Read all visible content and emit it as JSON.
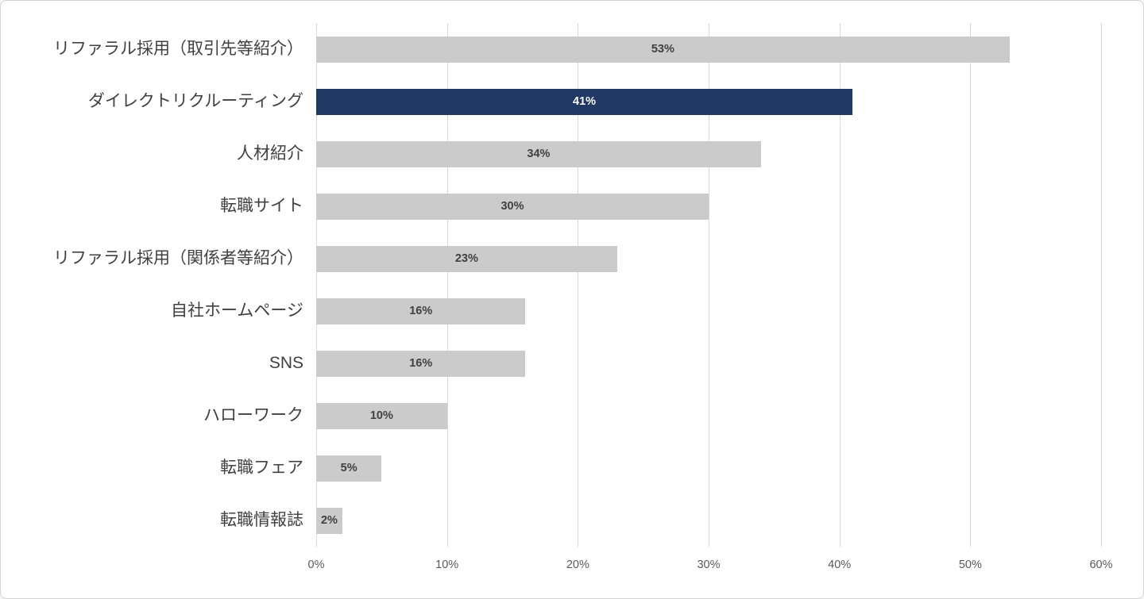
{
  "chart_data": {
    "type": "bar",
    "orientation": "horizontal",
    "title": "",
    "xlabel": "",
    "ylabel": "",
    "categories": [
      "リファラル採用（取引先等紹介）",
      "ダイレクトリクルーティング",
      "人材紹介",
      "転職サイト",
      "リファラル採用（関係者等紹介）",
      "自社ホームページ",
      "SNS",
      "ハローワーク",
      "転職フェア",
      "転職情報誌"
    ],
    "values": [
      53,
      41,
      34,
      30,
      23,
      16,
      16,
      10,
      5,
      2
    ],
    "value_labels": [
      "53%",
      "41%",
      "34%",
      "30%",
      "23%",
      "16%",
      "16%",
      "10%",
      "5%",
      "2%"
    ],
    "highlight_index": 1,
    "xlim": [
      0,
      60
    ],
    "tick_values": [
      0,
      10,
      20,
      30,
      40,
      50,
      60
    ],
    "tick_labels": [
      "0%",
      "10%",
      "20%",
      "30%",
      "40%",
      "50%",
      "60%"
    ],
    "grid": true,
    "legend": false,
    "colors": {
      "bar": "#cbcbcb",
      "highlight_bar": "#1f3864",
      "gridline": "#d9d9d9",
      "category_label": "#404040",
      "value_label": "#404040",
      "value_label_highlight": "#ffffff",
      "axis_label": "#595959",
      "frame_border": "#d2d2d2",
      "background": "#ffffff"
    }
  }
}
